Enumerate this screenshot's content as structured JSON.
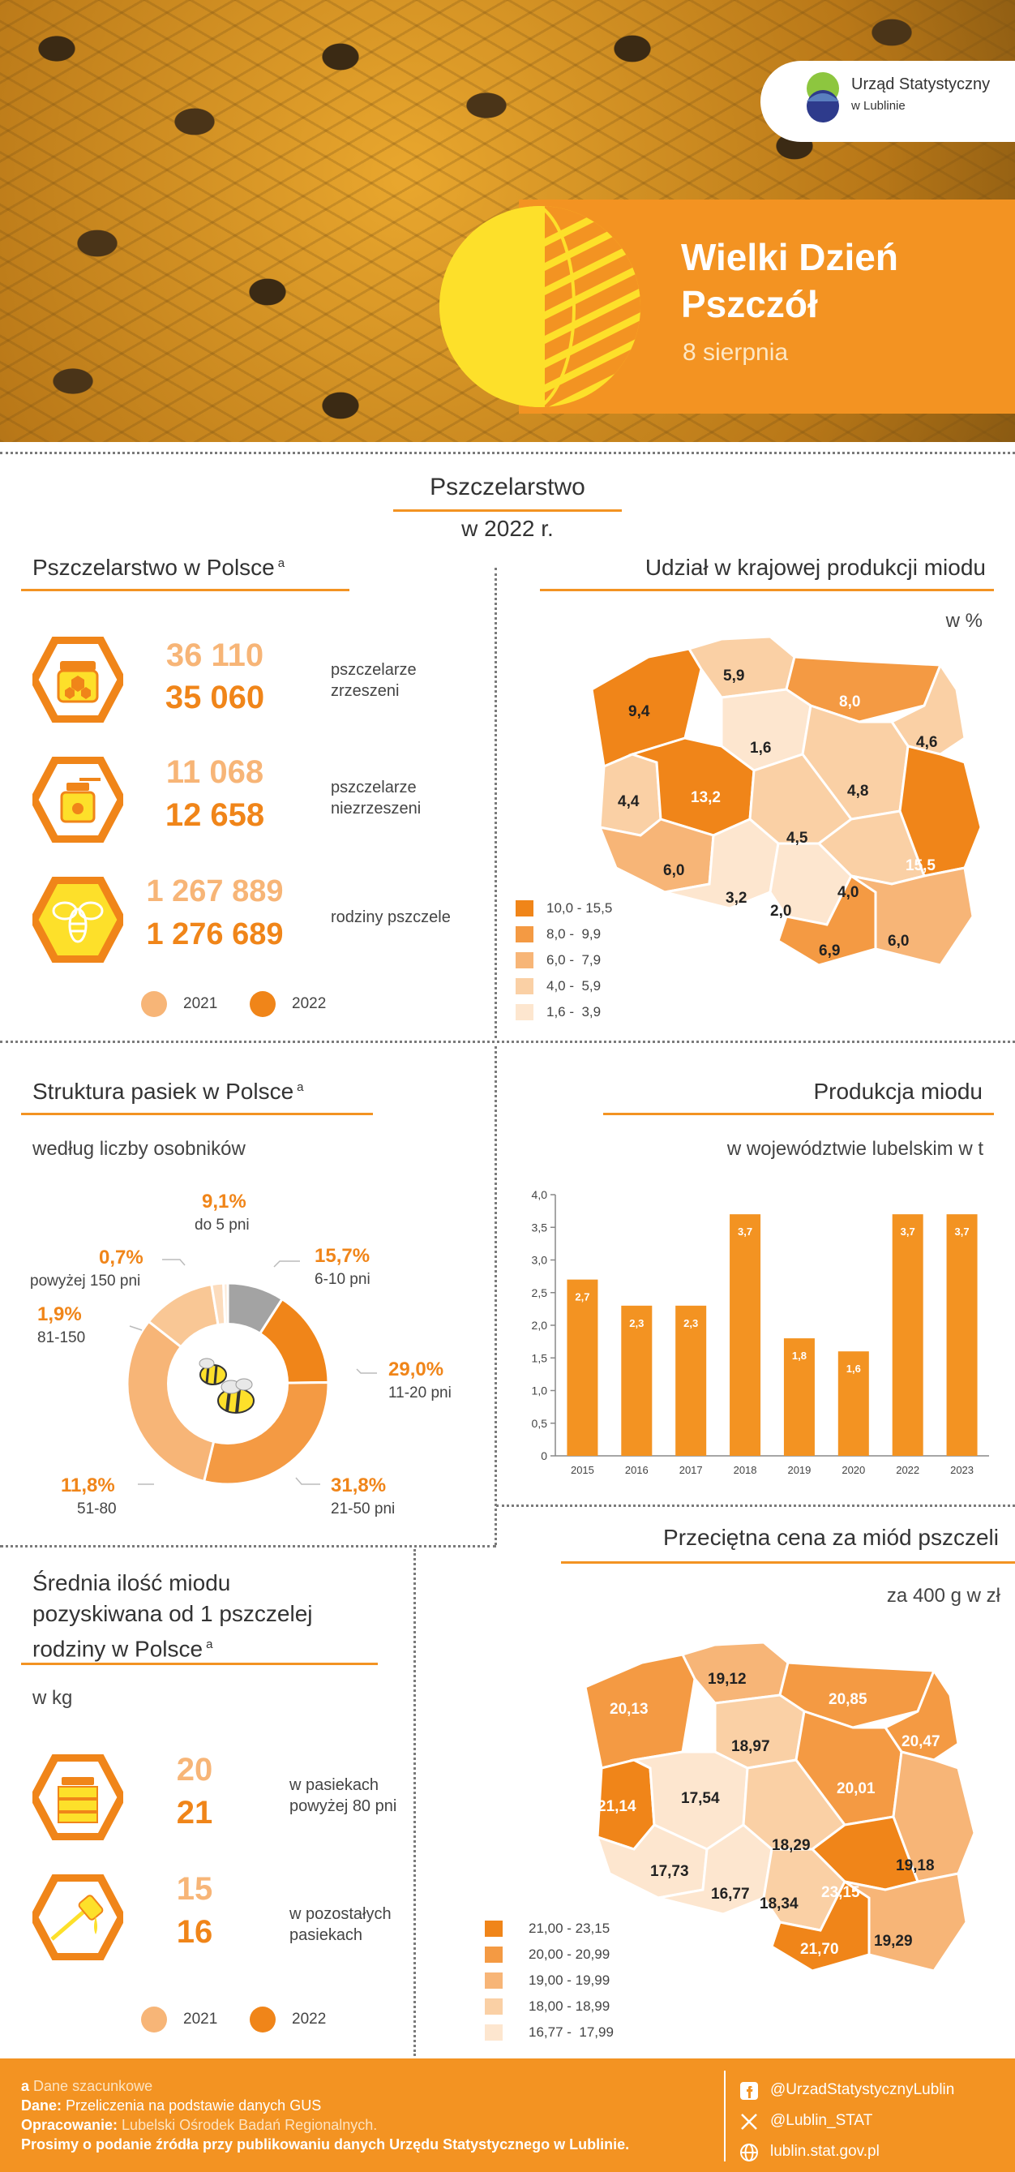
{
  "header": {
    "logo_line1": "Urząd Statystyczny",
    "logo_line2": "w Lublinie",
    "title_line1": "Wielki Dzień",
    "title_line2": "Pszczół",
    "date": "8 sierpnia"
  },
  "intro": {
    "title": "Pszczelarstwo",
    "year": "w 2022 r."
  },
  "beekeeping": {
    "title": "Pszczelarstwo w Polsce",
    "footnote_mark": "a",
    "rows": [
      {
        "v2021": "36 110",
        "v2022": "35 060",
        "label": "pszczelarze zrzeszeni",
        "icon": "honey-jar-icon"
      },
      {
        "v2021": "11 068",
        "v2022": "12 658",
        "label": "pszczelarze niezrzeszeni",
        "icon": "honey-dipper-icon"
      },
      {
        "v2021": "1 267 889",
        "v2022": "1 276 689",
        "label": "rodziny pszczele",
        "icon": "bee-icon"
      }
    ],
    "legend": [
      {
        "label": "2021",
        "color": "#f7b577"
      },
      {
        "label": "2022",
        "color": "#f08519"
      }
    ]
  },
  "honey_share": {
    "title": "Udział w krajowej produkcji miodu",
    "unit": "w %",
    "legend": [
      "10,0 - 15,5",
      "8,0 -  9,9",
      "6,0 -  7,9",
      "4,0 -  5,9",
      "1,6 -  3,9"
    ],
    "legend_colors": [
      "#f08519",
      "#f49a43",
      "#f7b577",
      "#fad0a5",
      "#fde6cf"
    ],
    "regions": [
      {
        "value": "9,4"
      },
      {
        "value": "5,9"
      },
      {
        "value": "8,0"
      },
      {
        "value": "4,6"
      },
      {
        "value": "1,6"
      },
      {
        "value": "4,4"
      },
      {
        "value": "13,2"
      },
      {
        "value": "4,8"
      },
      {
        "value": "4,5"
      },
      {
        "value": "6,0"
      },
      {
        "value": "15,5"
      },
      {
        "value": "4,0"
      },
      {
        "value": "3,2"
      },
      {
        "value": "2,0"
      },
      {
        "value": "6,9"
      },
      {
        "value": "6,0"
      }
    ]
  },
  "apiary_structure": {
    "title": "Struktura pasiek w Polsce",
    "footnote_mark": "a",
    "subtitle": "według liczby osobników",
    "slices": [
      {
        "label": "do 5 pni",
        "pct": "9,1%",
        "value": 9.1,
        "color": "#a3a3a3"
      },
      {
        "label": "6-10 pni",
        "pct": "15,7%",
        "value": 15.7,
        "color": "#f08519"
      },
      {
        "label": "11-20 pni",
        "pct": "29,0%",
        "value": 29.0,
        "color": "#f49a43"
      },
      {
        "label": "21-50 pni",
        "pct": "31,8%",
        "value": 31.8,
        "color": "#f7b577"
      },
      {
        "label": "51-80",
        "pct": "11,8%",
        "value": 11.8,
        "color": "#f9c795"
      },
      {
        "label": "81-150",
        "pct": "1,9%",
        "value": 1.9,
        "color": "#fcdcbd"
      },
      {
        "label": "powyżej 150 pni",
        "pct": "0,7%",
        "value": 0.7,
        "color": "#fde9d6"
      }
    ]
  },
  "chart_data": {
    "type": "bar",
    "title": "Produkcja miodu",
    "subtitle": "w województwie lubelskim w t",
    "categories": [
      "2015",
      "2016",
      "2017",
      "2018",
      "2019",
      "2020",
      "2022",
      "2023"
    ],
    "values": [
      2.7,
      2.3,
      2.3,
      3.7,
      1.8,
      1.6,
      3.7,
      3.7
    ],
    "value_labels": [
      "2,7",
      "2,3",
      "2,3",
      "3,7",
      "1,8",
      "1,6",
      "3,7",
      "3,7"
    ],
    "yticks": [
      "0",
      "0,5",
      "1,0",
      "1,5",
      "2,0",
      "2,5",
      "3,0",
      "3,5",
      "4,0"
    ],
    "ylim": [
      0,
      4
    ],
    "color": "#f39322"
  },
  "honey_yield": {
    "title_line1": "Średnia ilość miodu",
    "title_line2": "pozyskiwana od 1 pszczelej",
    "title_line3": "rodziny w Polsce",
    "footnote_mark": "a",
    "unit": "w kg",
    "rows": [
      {
        "v2021": "20",
        "v2022": "21",
        "label": "w pasiekach powyżej 80 pni",
        "icon": "beehive-icon"
      },
      {
        "v2021": "15",
        "v2022": "16",
        "label": "w pozostałych pasiekach",
        "icon": "honey-drip-icon"
      }
    ],
    "legend": [
      {
        "label": "2021",
        "color": "#f7b577"
      },
      {
        "label": "2022",
        "color": "#f08519"
      }
    ]
  },
  "honey_price": {
    "title": "Przeciętna cena za miód pszczeli",
    "unit": "za 400 g w zł",
    "legend": [
      "21,00 - 23,15",
      "20,00 - 20,99",
      "19,00 - 19,99",
      "18,00 - 18,99",
      "16,77 -  17,99"
    ],
    "legend_colors": [
      "#f08519",
      "#f49a43",
      "#f7b577",
      "#fad0a5",
      "#fde6cf"
    ],
    "regions": [
      {
        "value": "20,13"
      },
      {
        "value": "19,12"
      },
      {
        "value": "20,85"
      },
      {
        "value": "20,47"
      },
      {
        "value": "18,97"
      },
      {
        "value": "21,14"
      },
      {
        "value": "17,54"
      },
      {
        "value": "20,01"
      },
      {
        "value": "18,29"
      },
      {
        "value": "19,18"
      },
      {
        "value": "17,73"
      },
      {
        "value": "16,77"
      },
      {
        "value": "23,15"
      },
      {
        "value": "18,34"
      },
      {
        "value": "21,70"
      },
      {
        "value": "19,29"
      }
    ]
  },
  "footer": {
    "note_mark": "a",
    "note": "Dane szacunkowe",
    "data_label": "Dane:",
    "data_text": "Przeliczenia na podstawie danych GUS",
    "prep_label": "Opracowanie:",
    "prep_text": "Lubelski Ośrodek Badań Regionalnych.",
    "request": "Prosimy o podanie źródła przy publikowaniu danych Urzędu Statystycznego w Lublinie.",
    "facebook": "@UrzadStatystycznyLublin",
    "twitter": "@Lublin_STAT",
    "website": "lublin.stat.gov.pl"
  }
}
